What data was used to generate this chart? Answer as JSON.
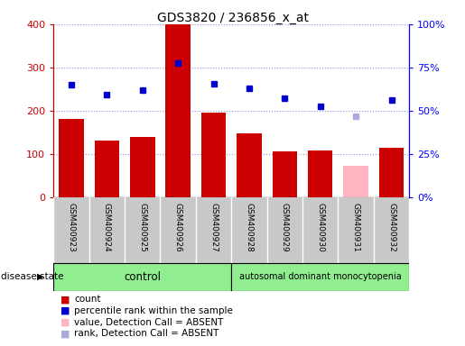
{
  "title": "GDS3820 / 236856_x_at",
  "samples": [
    "GSM400923",
    "GSM400924",
    "GSM400925",
    "GSM400926",
    "GSM400927",
    "GSM400928",
    "GSM400929",
    "GSM400930",
    "GSM400931",
    "GSM400932"
  ],
  "counts": [
    182,
    130,
    140,
    400,
    196,
    147,
    106,
    108,
    72,
    114
  ],
  "percentile_ranks": [
    65,
    59.5,
    61.8,
    77.5,
    65.5,
    63,
    57,
    52.5,
    47,
    56
  ],
  "count_colors": [
    "#cc0000",
    "#cc0000",
    "#cc0000",
    "#cc0000",
    "#cc0000",
    "#cc0000",
    "#cc0000",
    "#cc0000",
    "#ffb6c1",
    "#cc0000"
  ],
  "rank_colors": [
    "#0000cc",
    "#0000cc",
    "#0000cc",
    "#0000cc",
    "#0000cc",
    "#0000cc",
    "#0000cc",
    "#0000cc",
    "#aaaadd",
    "#0000cc"
  ],
  "absent_count_flags": [
    false,
    false,
    false,
    false,
    false,
    false,
    false,
    false,
    true,
    false
  ],
  "absent_rank_flags": [
    false,
    false,
    false,
    false,
    false,
    false,
    false,
    false,
    true,
    false
  ],
  "control_indices": [
    0,
    1,
    2,
    3,
    4
  ],
  "disease_indices": [
    5,
    6,
    7,
    8,
    9
  ],
  "control_label": "control",
  "disease_label": "autosomal dominant monocytopenia",
  "disease_state_label": "disease state",
  "ylim_left": [
    0,
    400
  ],
  "ylim_right": [
    0,
    100
  ],
  "yticks_left": [
    0,
    100,
    200,
    300,
    400
  ],
  "ytick_labels_right": [
    "0%",
    "25%",
    "50%",
    "75%",
    "100%"
  ],
  "yticks_right": [
    0,
    25,
    50,
    75,
    100
  ],
  "background_color": "#ffffff",
  "xtick_bg_color": "#c8c8c8",
  "control_bg_color": "#90ee90",
  "disease_bg_color": "#90ee90",
  "legend_items": [
    {
      "label": "count",
      "color": "#cc0000"
    },
    {
      "label": "percentile rank within the sample",
      "color": "#0000cc"
    },
    {
      "label": "value, Detection Call = ABSENT",
      "color": "#ffb6c1"
    },
    {
      "label": "rank, Detection Call = ABSENT",
      "color": "#aaaadd"
    }
  ]
}
